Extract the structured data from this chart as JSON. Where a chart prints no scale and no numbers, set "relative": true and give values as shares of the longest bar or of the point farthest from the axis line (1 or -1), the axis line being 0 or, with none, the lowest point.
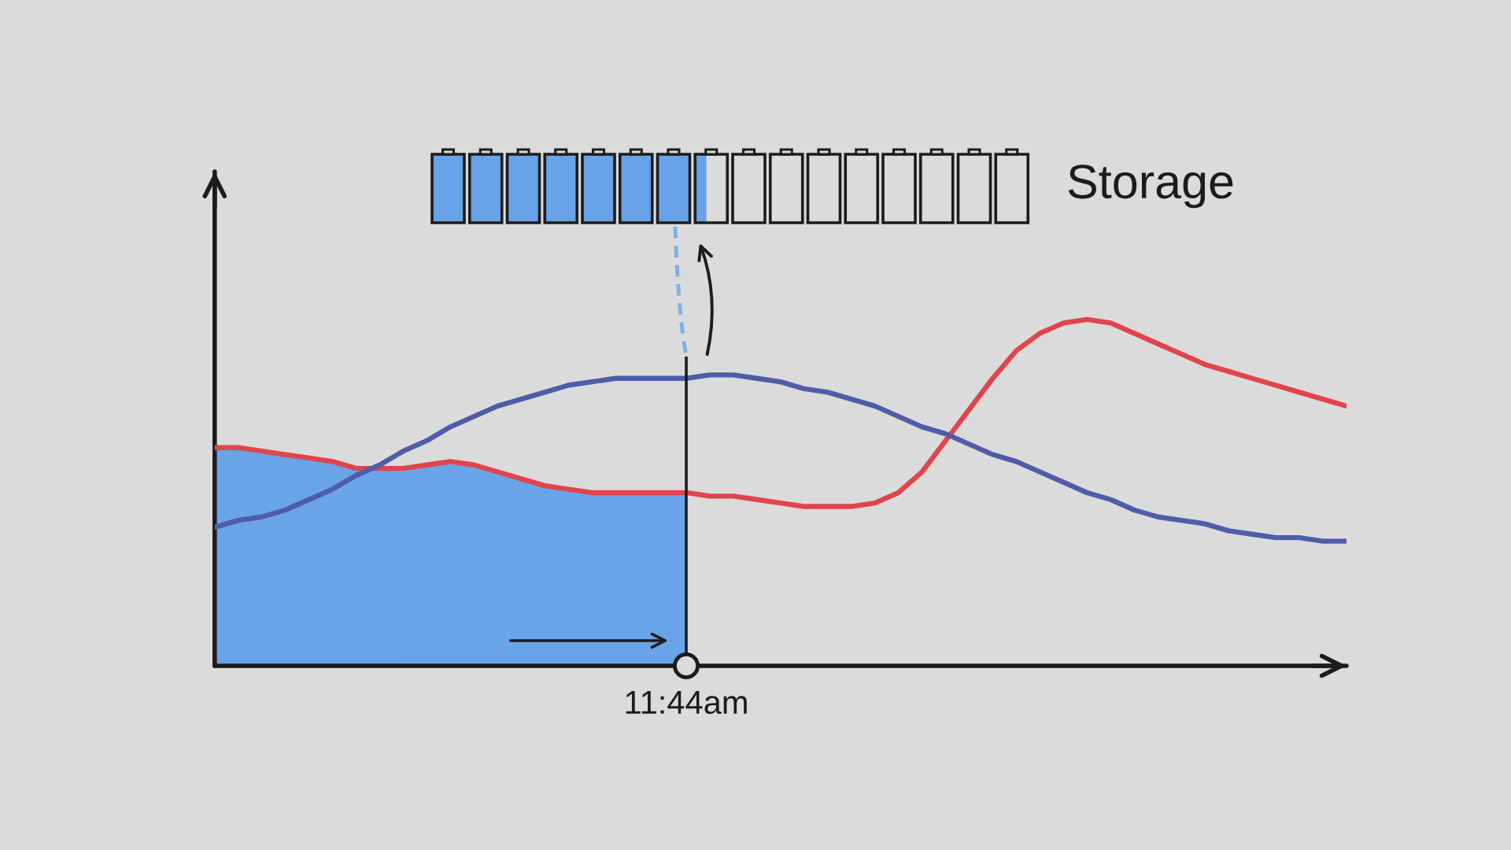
{
  "chart_data": {
    "type": "line",
    "relative": true,
    "categories": [
      null,
      null,
      null,
      null,
      null,
      null,
      null,
      null,
      null,
      null,
      null,
      null,
      null,
      null,
      null,
      null,
      null,
      null,
      null,
      null,
      null,
      null,
      null,
      null,
      null,
      null,
      null,
      null,
      null,
      null,
      null,
      null,
      null,
      null,
      null,
      null,
      null,
      null,
      null,
      null,
      null,
      null,
      null,
      null,
      null,
      null,
      null,
      null,
      null
    ],
    "series": [
      {
        "type": "area",
        "color": "#69a3e8",
        "values": [
          0.63,
          0.63,
          0.62,
          0.61,
          0.6,
          0.59,
          0.57,
          0.57,
          0.57,
          0.58,
          0.59,
          0.58,
          0.56,
          0.54,
          0.52,
          0.51,
          0.5,
          0.5,
          0.5,
          0.5,
          0.5,
          null,
          null,
          null,
          null,
          null,
          null,
          null,
          null,
          null,
          null,
          null,
          null,
          null,
          null,
          null,
          null,
          null,
          null,
          null,
          null,
          null,
          null,
          null,
          null,
          null,
          null,
          null,
          null
        ]
      },
      {
        "color": "#e0444c",
        "values": [
          0.63,
          0.63,
          0.62,
          0.61,
          0.6,
          0.59,
          0.57,
          0.57,
          0.57,
          0.58,
          0.59,
          0.58,
          0.56,
          0.54,
          0.52,
          0.51,
          0.5,
          0.5,
          0.5,
          0.5,
          0.5,
          0.49,
          0.49,
          0.48,
          0.47,
          0.46,
          0.46,
          0.46,
          0.47,
          0.5,
          0.56,
          0.65,
          0.74,
          0.83,
          0.91,
          0.96,
          0.99,
          1.0,
          0.99,
          0.96,
          0.93,
          0.9,
          0.87,
          0.85,
          0.83,
          0.81,
          0.79,
          0.77,
          0.75
        ]
      },
      {
        "color": "#4f5da8",
        "values": [
          0.4,
          0.42,
          0.43,
          0.45,
          0.48,
          0.51,
          0.55,
          0.58,
          0.62,
          0.65,
          0.69,
          0.72,
          0.75,
          0.77,
          0.79,
          0.81,
          0.82,
          0.83,
          0.83,
          0.83,
          0.83,
          0.84,
          0.84,
          0.83,
          0.82,
          0.8,
          0.79,
          0.77,
          0.75,
          0.72,
          0.69,
          0.67,
          0.64,
          0.61,
          0.59,
          0.56,
          0.53,
          0.5,
          0.48,
          0.45,
          0.43,
          0.42,
          0.41,
          0.39,
          0.38,
          0.37,
          0.37,
          0.36,
          0.36
        ]
      }
    ],
    "annotations": [
      "Storage",
      "11:44am"
    ]
  }
}
